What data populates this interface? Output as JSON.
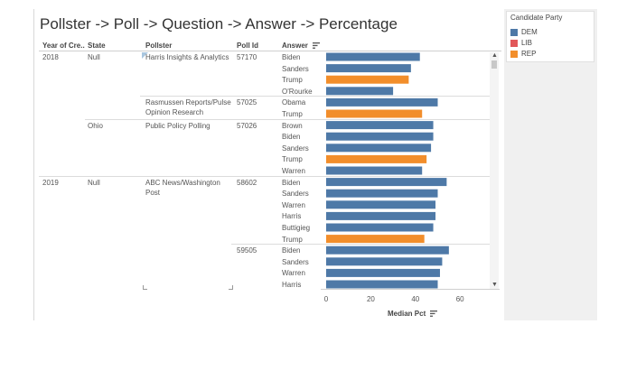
{
  "title": "Pollster -> Poll -> Question -> Answer -> Percentage",
  "columns": {
    "year": "Year of Cre..",
    "state": "State",
    "pollster": "Pollster",
    "poll_id": "Poll Id",
    "answer": "Answer"
  },
  "rows": [
    {
      "answer": "Biden",
      "party": "DEM",
      "pct": 42
    },
    {
      "answer": "Sanders",
      "party": "DEM",
      "pct": 38
    },
    {
      "answer": "Trump",
      "party": "REP",
      "pct": 37
    },
    {
      "answer": "O'Rourke",
      "party": "DEM",
      "pct": 30
    },
    {
      "answer": "Obama",
      "party": "DEM",
      "pct": 50
    },
    {
      "answer": "Trump",
      "party": "REP",
      "pct": 43
    },
    {
      "answer": "Brown",
      "party": "DEM",
      "pct": 48
    },
    {
      "answer": "Biden",
      "party": "DEM",
      "pct": 48
    },
    {
      "answer": "Sanders",
      "party": "DEM",
      "pct": 47
    },
    {
      "answer": "Trump",
      "party": "REP",
      "pct": 45
    },
    {
      "answer": "Warren",
      "party": "DEM",
      "pct": 43
    },
    {
      "answer": "Biden",
      "party": "DEM",
      "pct": 54
    },
    {
      "answer": "Sanders",
      "party": "DEM",
      "pct": 50
    },
    {
      "answer": "Warren",
      "party": "DEM",
      "pct": 49
    },
    {
      "answer": "Harris",
      "party": "DEM",
      "pct": 49
    },
    {
      "answer": "Buttigieg",
      "party": "DEM",
      "pct": 48
    },
    {
      "answer": "Trump",
      "party": "REP",
      "pct": 44
    },
    {
      "answer": "Biden",
      "party": "DEM",
      "pct": 55
    },
    {
      "answer": "Sanders",
      "party": "DEM",
      "pct": 52
    },
    {
      "answer": "Warren",
      "party": "DEM",
      "pct": 51
    },
    {
      "answer": "Harris",
      "party": "DEM",
      "pct": 50
    }
  ],
  "groups": {
    "years": [
      {
        "label": "2018",
        "row": 0
      },
      {
        "label": "2019",
        "row": 11
      }
    ],
    "states": [
      {
        "label": "Null",
        "row": 0
      },
      {
        "label": "Ohio",
        "row": 6
      },
      {
        "label": "Null",
        "row": 11
      }
    ],
    "pollsters": [
      {
        "label": "Harris Insights & Analytics",
        "row": 0
      },
      {
        "label": "Rasmussen Reports/Pulse Opinion Research",
        "row": 4
      },
      {
        "label": "Public Policy Polling",
        "row": 6
      },
      {
        "label": "ABC News/Washington Post",
        "row": 11
      }
    ],
    "polls": [
      {
        "label": "57170",
        "row": 0
      },
      {
        "label": "57025",
        "row": 4
      },
      {
        "label": "57026",
        "row": 6
      },
      {
        "label": "58602",
        "row": 11
      },
      {
        "label": "59505",
        "row": 17
      }
    ]
  },
  "axis": {
    "title": "Median Pct",
    "ticks": [
      "0",
      "20",
      "40",
      "60"
    ],
    "range": [
      0,
      75
    ]
  },
  "legend": {
    "title": "Candidate Party",
    "items": [
      {
        "label": "DEM",
        "color": "#4e79a7"
      },
      {
        "label": "LIB",
        "color": "#e15759"
      },
      {
        "label": "REP",
        "color": "#f28e2b"
      }
    ]
  },
  "colors": {
    "DEM": "#4e79a7",
    "LIB": "#e15759",
    "REP": "#f28e2b"
  },
  "chart_data": {
    "type": "bar",
    "categories": [
      "Biden",
      "Sanders",
      "Trump",
      "O'Rourke",
      "Obama",
      "Trump",
      "Brown",
      "Biden",
      "Sanders",
      "Trump",
      "Warren",
      "Biden",
      "Sanders",
      "Warren",
      "Harris",
      "Buttigieg",
      "Trump",
      "Biden",
      "Sanders",
      "Warren",
      "Harris"
    ],
    "values": [
      42,
      38,
      37,
      30,
      50,
      43,
      48,
      48,
      47,
      45,
      43,
      54,
      50,
      49,
      49,
      48,
      44,
      55,
      52,
      51,
      50
    ],
    "xlabel": "Median Pct",
    "xlim": [
      0,
      75
    ],
    "legend": [
      "DEM",
      "LIB",
      "REP"
    ],
    "legend_position": "right"
  }
}
